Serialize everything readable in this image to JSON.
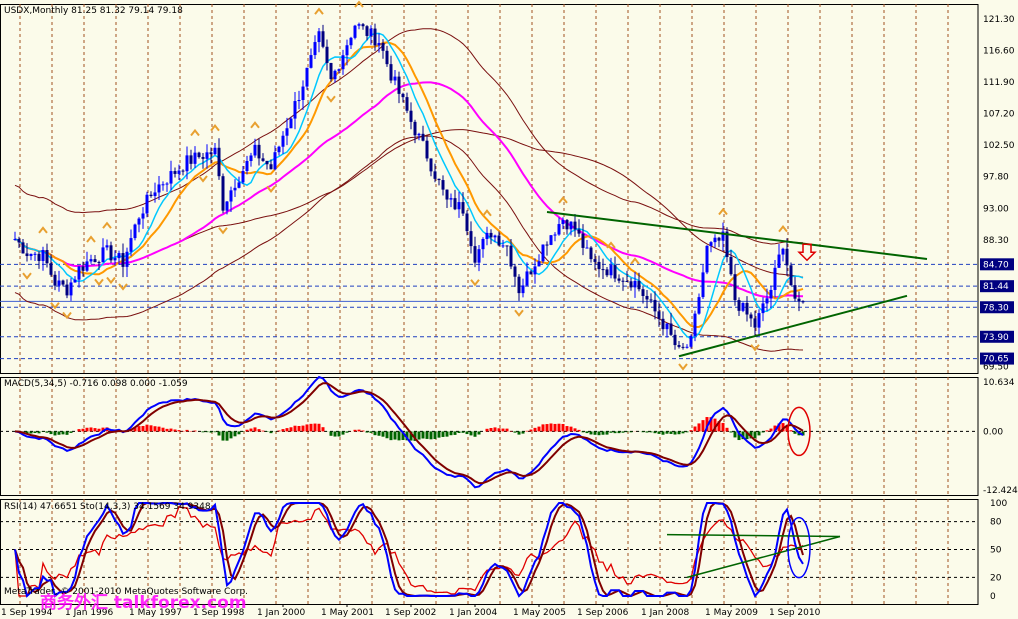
{
  "header": {
    "main_label": "USDX,Monthly  81.25 81.32 79.14 79.18",
    "macd_label": "MACD(5,34,5) -0.716 0.098 0.000 -1.059",
    "rsi_label": "RSI(14) 47.6651  Sto(14,3,3) 34.1569 34.9348",
    "copyright": "MetaTrader, © 2001-2010 MetaQuotes Software Corp.",
    "watermark": "商务外汇 talkforex.com"
  },
  "colors": {
    "background": "#fbfbea",
    "price_up": "#0000ff",
    "price_down": "#000080",
    "ma_fast": "#00c8ff",
    "ma_medium": "#ff9900",
    "ma_slow": "#ff00ff",
    "bands": "#7a1010",
    "trendline": "#006400",
    "hist_up": "#ff0000",
    "hist_down": "#006400",
    "annotation": "#e00000"
  },
  "chart_data": [
    {
      "type": "line",
      "title": "USDX,Monthly",
      "ohlc_last": {
        "open": 81.25,
        "high": 81.32,
        "low": 79.14,
        "close": 79.18
      },
      "x": [
        "1 Sep 1994",
        "1 Jan 1996",
        "1 May 1997",
        "1 Sep 1998",
        "1 Jan 2000",
        "1 May 2001",
        "1 Sep 2002",
        "1 Jan 2004",
        "1 May 2005",
        "1 Sep 2006",
        "1 Jan 2008",
        "1 May 2009",
        "1 Sep 2010"
      ],
      "y_ticks": [
        121.3,
        116.6,
        111.9,
        107.2,
        102.5,
        97.8,
        93.0,
        88.3,
        84.7,
        81.44,
        78.3,
        73.9,
        70.65,
        69.5
      ],
      "ylim": [
        68.5,
        123.5
      ],
      "price_path": [
        [
          "1994-06",
          88.5
        ],
        [
          "1994-09",
          86.5
        ],
        [
          "1995-01",
          86
        ],
        [
          "1995-04",
          82
        ],
        [
          "1995-07",
          81
        ],
        [
          "1995-10",
          84
        ],
        [
          "1996-01",
          85.5
        ],
        [
          "1996-05",
          86.5
        ],
        [
          "1996-09",
          85
        ],
        [
          "1997-01",
          92
        ],
        [
          "1997-05",
          96
        ],
        [
          "1997-09",
          98
        ],
        [
          "1998-01",
          100
        ],
        [
          "1998-05",
          101
        ],
        [
          "1998-08",
          101.5
        ],
        [
          "1998-10",
          93.5
        ],
        [
          "1999-01",
          97
        ],
        [
          "1999-06",
          101.5
        ],
        [
          "1999-10",
          99
        ],
        [
          "2000-01",
          104
        ],
        [
          "2000-05",
          110
        ],
        [
          "2000-10",
          118.5
        ],
        [
          "2001-01",
          112
        ],
        [
          "2001-07",
          120.5
        ],
        [
          "2002-01",
          118
        ],
        [
          "2002-04",
          113
        ],
        [
          "2002-09",
          106
        ],
        [
          "2003-01",
          101
        ],
        [
          "2003-06",
          94
        ],
        [
          "2003-10",
          93
        ],
        [
          "2004-01",
          86
        ],
        [
          "2004-05",
          89.5
        ],
        [
          "2004-09",
          87.5
        ],
        [
          "2004-12",
          81
        ],
        [
          "2005-03",
          84
        ],
        [
          "2005-07",
          88.5
        ],
        [
          "2005-11",
          91.5
        ],
        [
          "2006-02",
          90
        ],
        [
          "2006-06",
          85
        ],
        [
          "2006-12",
          83.5
        ],
        [
          "2007-05",
          82
        ],
        [
          "2007-09",
          78.5
        ],
        [
          "2008-01",
          75
        ],
        [
          "2008-04",
          71.5
        ],
        [
          "2008-07",
          73
        ],
        [
          "2008-11",
          87
        ],
        [
          "2009-03",
          88.5
        ],
        [
          "2009-06",
          79.5
        ],
        [
          "2009-11",
          75.5
        ],
        [
          "2010-03",
          81
        ],
        [
          "2010-06",
          88
        ],
        [
          "2010-09",
          78.5
        ],
        [
          "2010-11",
          79.18
        ]
      ],
      "horizontal_levels": [
        84.7,
        81.44,
        78.3,
        73.9,
        70.65
      ],
      "trendlines": [
        {
          "from": [
            "2005-07",
            92.5
          ],
          "to": [
            "2013-06",
            85.5
          ]
        },
        {
          "from": [
            "2008-04",
            71.0
          ],
          "to": [
            "2013-01",
            80.0
          ]
        }
      ]
    },
    {
      "type": "bar",
      "title": "MACD(5,34,5)",
      "values_shown": [
        -0.716,
        0.098,
        0.0,
        -1.059
      ],
      "y_ticks": [
        10.634,
        0.0,
        -12.424
      ],
      "ylim": [
        -12.424,
        10.634
      ]
    },
    {
      "type": "line",
      "title": "RSI(14) / Sto(14,3,3)",
      "values_shown": [
        47.6651,
        34.1569,
        34.9348
      ],
      "y_ticks": [
        100,
        80,
        50,
        20,
        0
      ],
      "ylim": [
        0,
        100
      ]
    }
  ]
}
